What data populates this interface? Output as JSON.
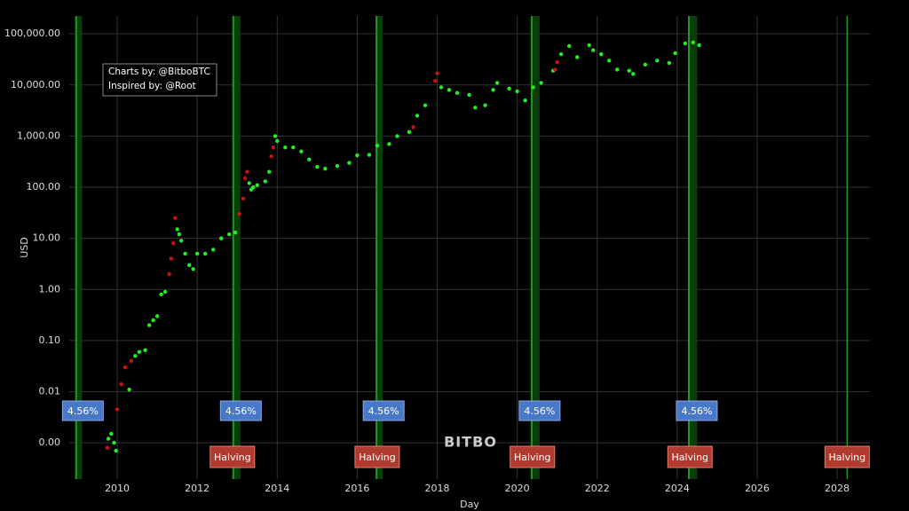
{
  "chart_data": {
    "type": "scatter",
    "x_label": "Day",
    "y_label": "USD",
    "credits": [
      "Charts by: @BitboBTC",
      "Inspired by: @Root"
    ],
    "watermark": "BITBO",
    "log_y": true,
    "grid": true,
    "xlim": [
      2008.8,
      2028.82
    ],
    "xticks": [
      2010,
      2012,
      2014,
      2016,
      2018,
      2020,
      2022,
      2024,
      2026,
      2028
    ],
    "ylim": [
      0.000195,
      224000
    ],
    "yticks": [
      {
        "value": 0.001,
        "label": "0.00"
      },
      {
        "value": 0.01,
        "label": "0.01"
      },
      {
        "value": 0.1,
        "label": "0.10"
      },
      {
        "value": 1,
        "label": "1.00"
      },
      {
        "value": 10,
        "label": "10.00"
      },
      {
        "value": 100,
        "label": "100.00"
      },
      {
        "value": 1000,
        "label": "1,000.00"
      },
      {
        "value": 10000,
        "label": "10,000.00"
      },
      {
        "value": 100000,
        "label": "100,000.00"
      }
    ],
    "bands": [
      [
        2008.95,
        2009.12
      ],
      [
        2012.88,
        2013.08
      ],
      [
        2016.46,
        2016.64
      ],
      [
        2020.34,
        2020.56
      ],
      [
        2024.27,
        2024.5
      ]
    ],
    "halving_lines": [
      2028.25
    ],
    "rate_labels": [
      {
        "x": 2009.03,
        "label": "4.56%"
      },
      {
        "x": 2012.98,
        "label": "4.56%"
      },
      {
        "x": 2016.55,
        "label": "4.56%"
      },
      {
        "x": 2020.45,
        "label": "4.56%"
      },
      {
        "x": 2024.38,
        "label": "4.56%"
      }
    ],
    "halving_labels": [
      {
        "x": 2012.88,
        "label": "Halving"
      },
      {
        "x": 2016.5,
        "label": "Halving"
      },
      {
        "x": 2020.38,
        "label": "Halving"
      },
      {
        "x": 2024.32,
        "label": "Halving"
      },
      {
        "x": 2028.25,
        "label": "Halving"
      }
    ],
    "series": [
      {
        "color": "#22ee22",
        "x": [
          2009.78,
          2009.85,
          2009.92,
          2009.97,
          2010.3,
          2010.45,
          2010.55,
          2010.7,
          2010.8,
          2010.9,
          2011.0,
          2011.1,
          2011.2,
          2011.5,
          2011.55,
          2011.6,
          2011.7,
          2011.8,
          2011.9,
          2012.0,
          2012.2,
          2012.4,
          2012.6,
          2012.8,
          2012.95,
          2013.3,
          2013.35,
          2013.4,
          2013.5,
          2013.7,
          2013.8,
          2013.95,
          2014.0,
          2014.2,
          2014.4,
          2014.6,
          2014.8,
          2015.0,
          2015.2,
          2015.5,
          2015.8,
          2016.0,
          2016.3,
          2016.5,
          2016.8,
          2017.0,
          2017.3,
          2017.5,
          2017.7,
          2018.1,
          2018.3,
          2018.5,
          2018.8,
          2018.95,
          2019.2,
          2019.4,
          2019.5,
          2019.8,
          2020.0,
          2020.2,
          2020.4,
          2020.6,
          2020.9,
          2021.1,
          2021.3,
          2021.5,
          2021.8,
          2021.9,
          2022.1,
          2022.3,
          2022.5,
          2022.8,
          2022.9,
          2023.2,
          2023.5,
          2023.8,
          2023.95,
          2024.2,
          2024.4,
          2024.55
        ],
        "values": [
          0.0012,
          0.0015,
          0.001,
          0.0007,
          0.011,
          0.05,
          0.06,
          0.065,
          0.2,
          0.25,
          0.3,
          0.8,
          0.9,
          15,
          12,
          9,
          5,
          3,
          2.5,
          5,
          5,
          6,
          10,
          12,
          13,
          120,
          90,
          100,
          110,
          130,
          200,
          1000,
          800,
          600,
          600,
          500,
          350,
          250,
          230,
          260,
          300,
          420,
          430,
          650,
          700,
          1000,
          1200,
          2500,
          4000,
          9000,
          8000,
          7000,
          6400,
          3600,
          4000,
          8000,
          11000,
          8500,
          7500,
          5000,
          9000,
          11000,
          19000,
          40000,
          58000,
          35000,
          60000,
          48000,
          40000,
          30000,
          20000,
          19000,
          16500,
          25000,
          30000,
          27000,
          42000,
          65000,
          68000,
          60000
        ]
      },
      {
        "color": "#cc1111",
        "x": [
          2009.75,
          2010.0,
          2010.1,
          2010.2,
          2010.35,
          2011.3,
          2011.35,
          2011.4,
          2011.45,
          2013.05,
          2013.15,
          2013.2,
          2013.25,
          2013.85,
          2013.9,
          2017.4,
          2017.95,
          2018.0,
          2020.95,
          2021.0
        ],
        "values": [
          0.0008,
          0.0045,
          0.014,
          0.03,
          0.04,
          2,
          4,
          8,
          25,
          30,
          60,
          150,
          200,
          400,
          600,
          1500,
          12000,
          17000,
          20000,
          28000
        ]
      }
    ]
  }
}
